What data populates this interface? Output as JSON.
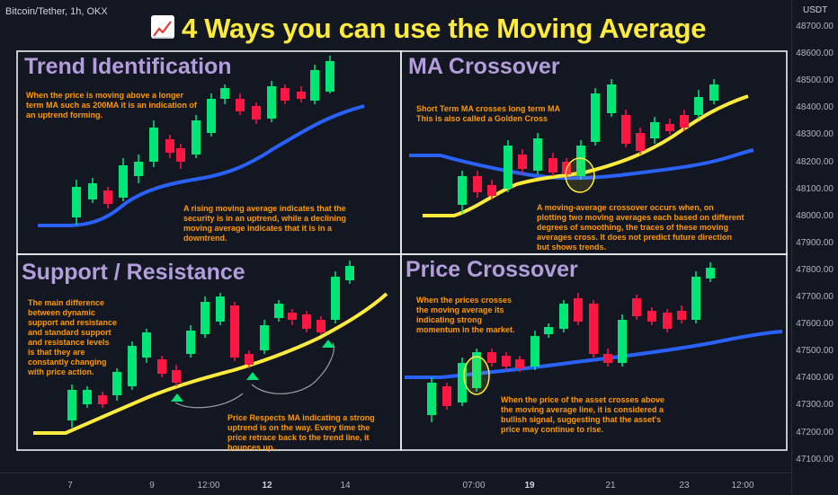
{
  "symbol_label": "Bitcoin/Tether, 1h, OKX",
  "title": "4 Ways you can use the Moving Average",
  "currency": "USDT",
  "y_axis_labels": [
    "48700.00",
    "48600.00",
    "48500.00",
    "48400.00",
    "48300.00",
    "48200.00",
    "48100.00",
    "48000.00",
    "47900.00",
    "47800.00",
    "47700.00",
    "47600.00",
    "47500.00",
    "47400.00",
    "47300.00",
    "47200.00",
    "47100.00"
  ],
  "x_axis_labels": [
    {
      "text": "7",
      "bold": false
    },
    {
      "text": "9",
      "bold": false
    },
    {
      "text": "12:00",
      "bold": false
    },
    {
      "text": "12",
      "bold": true
    },
    {
      "text": "14",
      "bold": false
    },
    {
      "text": "07:00",
      "bold": false
    },
    {
      "text": "19",
      "bold": true
    },
    {
      "text": "21",
      "bold": false
    },
    {
      "text": "23",
      "bold": false
    },
    {
      "text": "12:00",
      "bold": false
    }
  ],
  "panels": {
    "trend": {
      "title": "Trend Identification",
      "note_top": "When the price is moving above a longer term MA such as 200MA it is an indication of an uptrend forming.",
      "note_bottom": "A rising moving average indicates that the security is in an uptrend, while a declining moving average indicates that it is in a downtrend."
    },
    "crossover": {
      "title": "MA Crossover",
      "note_top": "Short Term MA crosses long term MA This is also called a Golden Cross",
      "note_bottom": "A moving-average crossover occurs when, on plotting two moving averages each based on different degrees of smoothing, the traces of these moving averages cross. It does not predict future direction but shows trends."
    },
    "support": {
      "title": "Support / Resistance",
      "note_left": "The main difference between dynamic support and resistance and standard support and resistance levels is that they are constantly changing with price action.",
      "note_bottom": "Price Respects MA indicating a strong uptrend is on the way. Every time the price retrace back to the trend line, it bounces up."
    },
    "price": {
      "title": "Price Crossover",
      "note_top": "When the prices crosses the moving average its indicating strong momentum in the market.",
      "note_bottom": "When the price of the asset crosses above the moving average line, it is considered a bullish signal, suggesting that the asset's price may continue to rise."
    }
  },
  "colors": {
    "bull": "#00e676",
    "bear": "#ff1744",
    "ma_long": "#2962ff",
    "ma_short": "#ffeb3b",
    "title": "#ffeb3b",
    "panel_title": "#b39ddb",
    "note": "#ff9800"
  }
}
